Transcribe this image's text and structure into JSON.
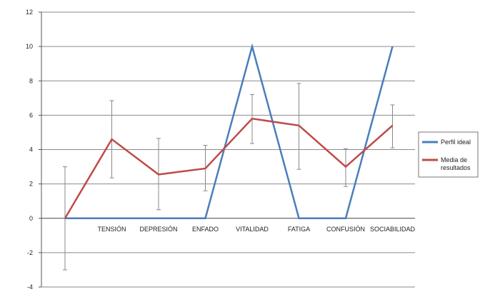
{
  "chart_data": {
    "type": "line",
    "title": "",
    "xlabel": "",
    "ylabel": "",
    "ylim": [
      -4,
      12
    ],
    "yticks": [
      "-4",
      "-2",
      "0",
      "2",
      "4",
      "6",
      "8",
      "10",
      "12"
    ],
    "grid": "horizontal",
    "legend_position": "right",
    "x": [
      "",
      "TENSIÓN",
      "DEPRESIÓN",
      "ENFADO",
      "VITALIDAD",
      "FATIGA",
      "CONFUSIÓN",
      "SOCIABILIDAD"
    ],
    "series": [
      {
        "name": "Perfil ideal",
        "color": "#4a7ebb",
        "values": [
          0,
          0,
          0,
          0,
          10,
          0,
          0,
          10
        ]
      },
      {
        "name": "Media de resultados",
        "color": "#be4b48",
        "values": [
          0,
          4.6,
          2.55,
          2.9,
          5.8,
          5.4,
          3.0,
          5.4
        ],
        "error_low": [
          -3.0,
          2.35,
          0.5,
          1.6,
          4.35,
          2.85,
          1.85,
          4.1
        ],
        "error_high": [
          3.0,
          6.85,
          4.65,
          4.25,
          7.2,
          7.85,
          4.05,
          6.6
        ]
      }
    ],
    "error_bar_color": "#888888"
  }
}
